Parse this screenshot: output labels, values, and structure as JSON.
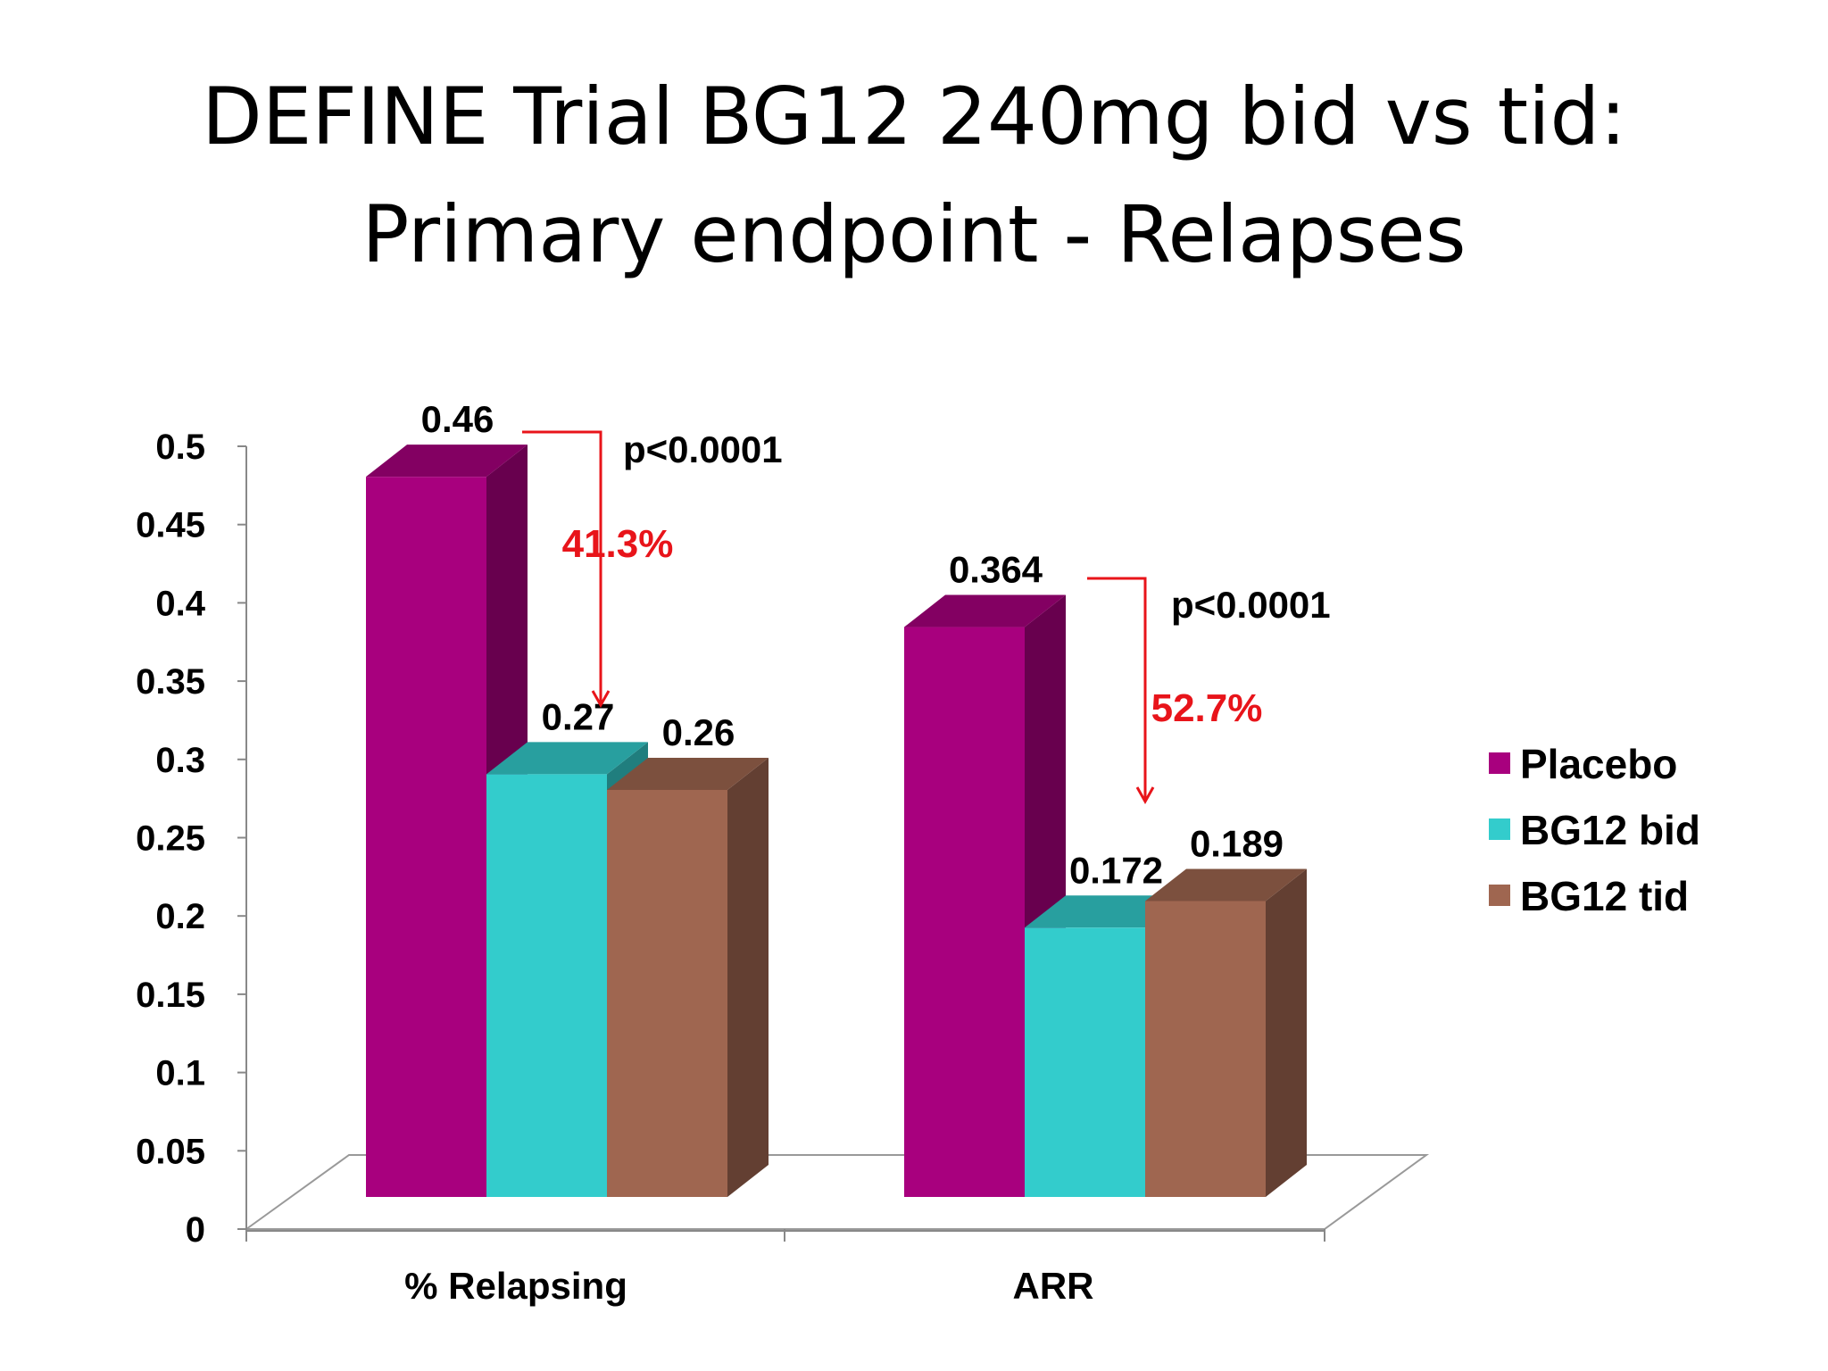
{
  "slide": {
    "title_line1": "DEFINE Trial BG12 240mg bid vs tid:",
    "title_line2": "Primary endpoint - Relapses"
  },
  "chart_data": {
    "type": "bar",
    "style": "3d",
    "categories": [
      "% Relapsing",
      "ARR"
    ],
    "series": [
      {
        "name": "Placebo",
        "color": "#a8007e",
        "values": [
          0.46,
          0.364
        ],
        "value_labels": [
          "0.46",
          "0.364"
        ]
      },
      {
        "name": "BG12 bid",
        "color": "#33cccc",
        "values": [
          0.27,
          0.172
        ],
        "value_labels": [
          "0.27",
          "0.172"
        ]
      },
      {
        "name": "BG12 tid",
        "color": "#9f6650",
        "values": [
          0.26,
          0.189
        ],
        "value_labels": [
          "0.26",
          "0.189"
        ]
      }
    ],
    "ylim": [
      0,
      0.5
    ],
    "yticks": [
      "0",
      "0.05",
      "0.1",
      "0.15",
      "0.2",
      "0.25",
      "0.3",
      "0.35",
      "0.4",
      "0.45",
      "0.5"
    ],
    "legend_position": "right",
    "annotations": [
      {
        "category": "% Relapsing",
        "p_value": "p<0.0001",
        "reduction": "41.3%"
      },
      {
        "category": "ARR",
        "p_value": "p<0.0001",
        "reduction": "52.7%"
      }
    ],
    "colors": {
      "annotation_arrow": "#e8141a",
      "reduction_text": "#e8141a",
      "axis": "#888888"
    }
  }
}
